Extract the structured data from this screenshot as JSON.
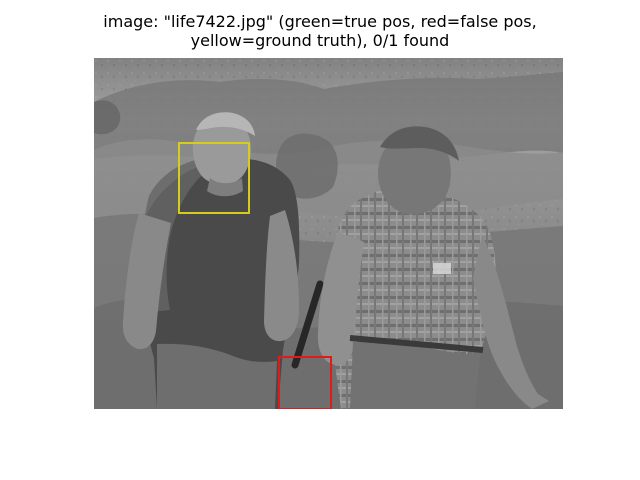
{
  "figure": {
    "title_line_1": "image: \"life7422.jpg\" (green=true pos, red=false pos,",
    "title_line_2": "yellow=ground truth), 0/1 found"
  },
  "image": {
    "description_colors": {
      "ground_truth_box": "#d8cc1a",
      "false_positive_box": "#e0191b",
      "true_positive_box": "#00a000"
    },
    "ground_truth_boxes": 1,
    "false_positive_boxes": 1,
    "true_positive_boxes": 0
  }
}
